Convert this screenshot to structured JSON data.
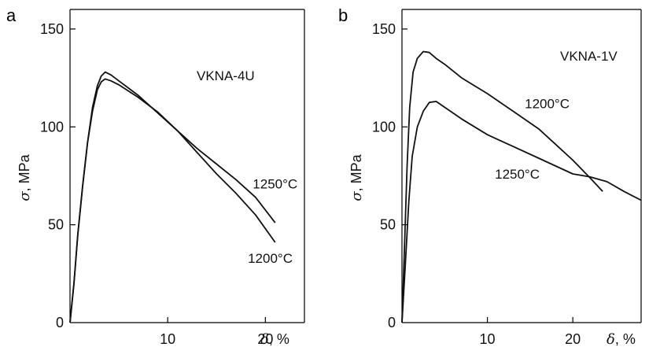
{
  "chart_data": [
    {
      "type": "line",
      "panel": "a",
      "title": "VKNA-4U",
      "xlabel": "δ, %",
      "xlabel_symbol": "δ",
      "xlabel_unit": ", %",
      "ylabel": "σ, MPa",
      "ylabel_symbol": "σ",
      "ylabel_unit": ", MPa",
      "xlim": [
        0,
        24
      ],
      "ylim": [
        0,
        160
      ],
      "xticks": [
        10,
        20
      ],
      "xtick_labels": [
        "10",
        "20"
      ],
      "yticks": [
        0,
        50,
        100,
        150
      ],
      "ytick_labels": [
        "0",
        "50",
        "100",
        "150"
      ],
      "grid": false,
      "series": [
        {
          "name": "1250°C",
          "label_pos": [
            21,
            71
          ],
          "points": [
            [
              0,
              0
            ],
            [
              0.4,
              20
            ],
            [
              0.8,
              45
            ],
            [
              1.3,
              70
            ],
            [
              1.8,
              92
            ],
            [
              2.3,
              110
            ],
            [
              2.8,
              121
            ],
            [
              3.2,
              126
            ],
            [
              3.6,
              128
            ],
            [
              4.2,
              126.5
            ],
            [
              5,
              123.5
            ],
            [
              7,
              116
            ],
            [
              9,
              107
            ],
            [
              11,
              98
            ],
            [
              13,
              89
            ],
            [
              15,
              81
            ],
            [
              17,
              73
            ],
            [
              19,
              64
            ],
            [
              21,
              51
            ]
          ]
        },
        {
          "name": "1200°C",
          "label_pos": [
            20.5,
            33
          ],
          "points": [
            [
              0,
              0
            ],
            [
              0.4,
              20
            ],
            [
              0.8,
              45
            ],
            [
              1.3,
              70
            ],
            [
              1.8,
              92
            ],
            [
              2.3,
              108
            ],
            [
              2.8,
              119
            ],
            [
              3.2,
              123
            ],
            [
              3.6,
              124.5
            ],
            [
              4.2,
              123.5
            ],
            [
              5,
              121.5
            ],
            [
              7,
              115
            ],
            [
              9,
              107.5
            ],
            [
              11,
              98
            ],
            [
              13,
              87
            ],
            [
              15,
              76
            ],
            [
              17,
              66
            ],
            [
              19,
              55
            ],
            [
              21,
              41
            ]
          ]
        }
      ]
    },
    {
      "type": "line",
      "panel": "b",
      "title": "VKNA-1V",
      "xlabel": "δ, %",
      "xlabel_symbol": "δ",
      "xlabel_unit": ", %",
      "ylabel": "σ, MPa",
      "ylabel_symbol": "σ",
      "ylabel_unit": ", MPa",
      "xlim": [
        0,
        28
      ],
      "ylim": [
        0,
        160
      ],
      "xticks": [
        10,
        20
      ],
      "xtick_labels": [
        "10",
        "20"
      ],
      "yticks": [
        0,
        50,
        100,
        150
      ],
      "ytick_labels": [
        "0",
        "50",
        "100",
        "150"
      ],
      "grid": false,
      "series": [
        {
          "name": "1200°C",
          "label_pos": [
            17,
            112
          ],
          "points": [
            [
              0,
              0
            ],
            [
              0.3,
              40
            ],
            [
              0.6,
              80
            ],
            [
              0.9,
              110
            ],
            [
              1.3,
              128
            ],
            [
              1.8,
              135
            ],
            [
              2.5,
              138.5
            ],
            [
              3.2,
              138
            ],
            [
              4,
              135
            ],
            [
              5,
              132
            ],
            [
              7,
              125
            ],
            [
              10,
              117
            ],
            [
              13,
              108
            ],
            [
              16,
              99
            ],
            [
              18,
              91
            ],
            [
              20,
              83
            ],
            [
              22,
              74
            ],
            [
              23.5,
              67
            ]
          ]
        },
        {
          "name": "1250°C",
          "label_pos": [
            13.5,
            76
          ],
          "points": [
            [
              0,
              0
            ],
            [
              0.4,
              30
            ],
            [
              0.8,
              62
            ],
            [
              1.2,
              85
            ],
            [
              1.8,
              100
            ],
            [
              2.5,
              108
            ],
            [
              3.2,
              112.5
            ],
            [
              4,
              113
            ],
            [
              5,
              110
            ],
            [
              7,
              104
            ],
            [
              10,
              96
            ],
            [
              13,
              90
            ],
            [
              16,
              84
            ],
            [
              18,
              80
            ],
            [
              20,
              76
            ],
            [
              22,
              74.5
            ],
            [
              24,
              72
            ],
            [
              26,
              67
            ],
            [
              28,
              62.5
            ]
          ]
        }
      ]
    }
  ]
}
